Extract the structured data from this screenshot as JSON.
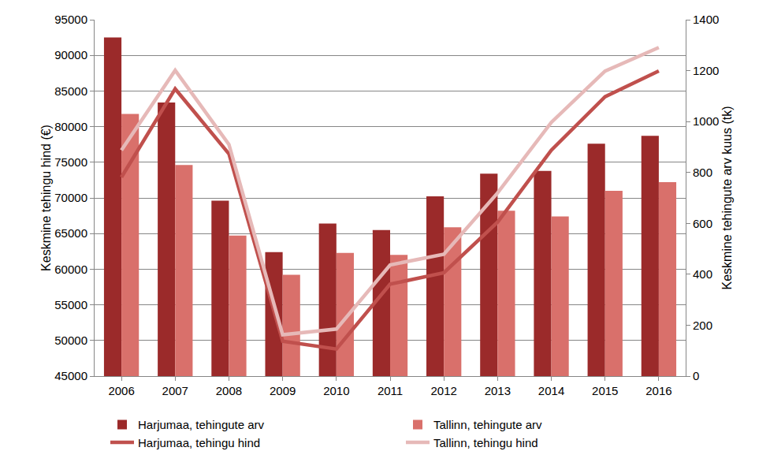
{
  "chart_data": {
    "type": "bar",
    "categories": [
      "2006",
      "2007",
      "2008",
      "2009",
      "2010",
      "2011",
      "2012",
      "2013",
      "2014",
      "2015",
      "2016"
    ],
    "y_label": "Keskmine tehingu hind (€)",
    "y2_label": "Keskmine tehingute arv kuus (tk)",
    "ylim": [
      45000,
      95000
    ],
    "yticks": [
      45000,
      50000,
      55000,
      60000,
      65000,
      70000,
      75000,
      80000,
      85000,
      90000,
      95000
    ],
    "y2lim": [
      0,
      1400
    ],
    "y2ticks": [
      0,
      200,
      400,
      600,
      800,
      1000,
      1200,
      1400
    ],
    "grid": true,
    "legend": "bottom",
    "series": [
      {
        "name": "Harjumaa, tehingute arv",
        "type": "bar",
        "axis": "y2",
        "color": "#9b2a2a",
        "values": [
          1330,
          1075,
          689,
          487,
          599,
          574,
          706,
          795,
          806,
          913,
          944
        ]
      },
      {
        "name": "Tallinn, tehingute arv",
        "type": "bar",
        "axis": "y2",
        "color": "#d9706b",
        "values": [
          1030,
          829,
          552,
          398,
          484,
          476,
          585,
          650,
          627,
          728,
          762
        ]
      },
      {
        "name": "Harjumaa, tehingu hind",
        "type": "line",
        "color": "#c0504d",
        "values": [
          72900,
          85300,
          76200,
          49900,
          48800,
          57900,
          59500,
          66600,
          76700,
          84200,
          87800
        ]
      },
      {
        "name": "Tallinn, tehingu hind",
        "type": "line",
        "color": "#e6b9b8",
        "values": [
          76700,
          87900,
          77500,
          50800,
          51600,
          60600,
          62100,
          70700,
          80600,
          87800,
          91100
        ]
      }
    ]
  }
}
